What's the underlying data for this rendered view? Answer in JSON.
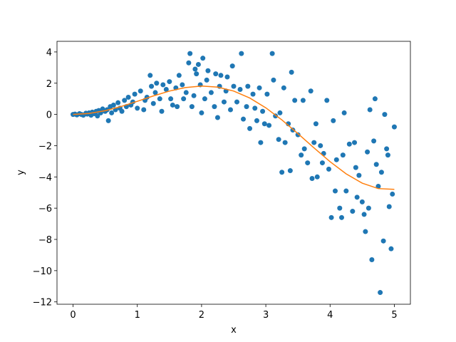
{
  "chart_data": {
    "type": "scatter",
    "x_label": "x",
    "y_label": "y",
    "xlim": [
      -0.25,
      5.25
    ],
    "ylim": [
      -12.15,
      4.68
    ],
    "xticks": [
      0,
      1,
      2,
      3,
      4,
      5
    ],
    "yticks": [
      {
        "value": -12,
        "label": "−12"
      },
      {
        "value": -10,
        "label": "−10"
      },
      {
        "value": -8,
        "label": "−8"
      },
      {
        "value": -6,
        "label": "−6"
      },
      {
        "value": -4,
        "label": "−4"
      },
      {
        "value": -2,
        "label": "−2"
      },
      0,
      2,
      4
    ],
    "series": [
      {
        "type": "scatter",
        "color": "#1f77b4",
        "x": [
          0,
          0.03,
          0.06,
          0.1,
          0.13,
          0.16,
          0.2,
          0.22,
          0.25,
          0.28,
          0.3,
          0.33,
          0.36,
          0.38,
          0.4,
          0.43,
          0.46,
          0.5,
          0.53,
          0.55,
          0.58,
          0.6,
          0.63,
          0.66,
          0.7,
          0.73,
          0.76,
          0.8,
          0.83,
          0.86,
          0.9,
          0.93,
          0.96,
          1.0,
          1.05,
          1.1,
          1.12,
          1.15,
          1.2,
          1.22,
          1.25,
          1.28,
          1.3,
          1.35,
          1.38,
          1.4,
          1.45,
          1.5,
          1.52,
          1.55,
          1.6,
          1.62,
          1.65,
          1.7,
          1.72,
          1.76,
          1.8,
          1.82,
          1.85,
          1.88,
          1.9,
          1.92,
          1.95,
          1.98,
          2.0,
          2.02,
          2.05,
          2.08,
          2.1,
          2.15,
          2.2,
          2.22,
          2.25,
          2.28,
          2.3,
          2.35,
          2.38,
          2.4,
          2.45,
          2.48,
          2.5,
          2.55,
          2.6,
          2.62,
          2.65,
          2.7,
          2.72,
          2.75,
          2.8,
          2.83,
          2.86,
          2.9,
          2.92,
          2.95,
          2.98,
          3.02,
          3.05,
          3.1,
          3.12,
          3.15,
          3.2,
          3.22,
          3.25,
          3.28,
          3.3,
          3.35,
          3.38,
          3.4,
          3.42,
          3.45,
          3.5,
          3.55,
          3.58,
          3.6,
          3.65,
          3.7,
          3.72,
          3.75,
          3.78,
          3.8,
          3.85,
          3.88,
          3.9,
          3.95,
          3.98,
          4.02,
          4.05,
          4.08,
          4.1,
          4.15,
          4.18,
          4.2,
          4.22,
          4.25,
          4.3,
          4.35,
          4.38,
          4.4,
          4.42,
          4.45,
          4.5,
          4.53,
          4.55,
          4.58,
          4.6,
          4.62,
          4.65,
          4.68,
          4.7,
          4.72,
          4.75,
          4.78,
          4.8,
          4.83,
          4.85,
          4.88,
          4.9,
          4.92,
          4.95,
          4.97,
          5.0
        ],
        "values": [
          0,
          0.02,
          -0.03,
          0.05,
          0,
          -0.05,
          0.08,
          0.02,
          0.1,
          -0.05,
          0.15,
          0.05,
          0.2,
          -0.1,
          0.25,
          0.1,
          0.35,
          0.2,
          0.3,
          -0.4,
          0.5,
          0.1,
          0.6,
          0.3,
          0.75,
          0.4,
          0.2,
          0.9,
          0.5,
          1.1,
          0.6,
          0.8,
          1.3,
          0.4,
          1.5,
          0.3,
          0.9,
          1.1,
          2.5,
          1.8,
          0.7,
          1.4,
          2.0,
          1.0,
          0.2,
          1.9,
          1.6,
          2.1,
          1.0,
          0.6,
          1.7,
          0.5,
          2.5,
          1.9,
          1.0,
          1.4,
          3.3,
          3.9,
          0.5,
          1.2,
          2.9,
          2.6,
          3.2,
          1.9,
          0.1,
          3.6,
          1.0,
          2.2,
          2.8,
          1.4,
          0.5,
          2.6,
          -0.2,
          1.8,
          2.5,
          0.8,
          1.5,
          2.4,
          0.3,
          3.1,
          1.8,
          0.8,
          1.6,
          3.9,
          -0.3,
          0.5,
          1.8,
          -0.9,
          1.3,
          0.4,
          -0.4,
          1.7,
          -1.8,
          0.2,
          -0.6,
          1.3,
          -0.7,
          3.9,
          2.2,
          -0.1,
          -1.6,
          0.1,
          -3.7,
          1.7,
          -1.8,
          -0.6,
          -3.6,
          2.7,
          -1.0,
          0.9,
          -1.3,
          -2.6,
          0.9,
          -2.2,
          -3.1,
          1.5,
          -4.1,
          -1.8,
          -0.6,
          -4.0,
          -2.0,
          -3.1,
          -2.5,
          0.9,
          -3.5,
          -6.6,
          -0.4,
          -4.9,
          -2.9,
          -6.0,
          -6.6,
          -2.6,
          0.1,
          -4.9,
          -1.9,
          -6.2,
          -1.8,
          -3.4,
          -5.3,
          -3.9,
          -5.6,
          -6.4,
          -7.5,
          -2.4,
          -6.0,
          0.3,
          -9.3,
          -1.7,
          1.0,
          -3.2,
          -4.6,
          -11.4,
          -3.7,
          -8.1,
          0.0,
          -2.2,
          -2.6,
          -5.9,
          -8.6,
          -5.1,
          -0.8
        ]
      },
      {
        "type": "line",
        "color": "#ff7f0e",
        "x": [
          0,
          0.25,
          0.5,
          0.75,
          1,
          1.25,
          1.5,
          1.75,
          2,
          2.25,
          2.5,
          2.75,
          3,
          3.25,
          3.5,
          3.75,
          4,
          4.25,
          4.5,
          4.75,
          5
        ],
        "values": [
          0,
          0.062,
          0.24,
          0.511,
          0.841,
          1.186,
          1.496,
          1.722,
          1.819,
          1.751,
          1.496,
          1.05,
          0.423,
          -0.352,
          -1.228,
          -2.144,
          -3.027,
          -3.804,
          -4.399,
          -4.747,
          -4.795
        ]
      }
    ]
  }
}
